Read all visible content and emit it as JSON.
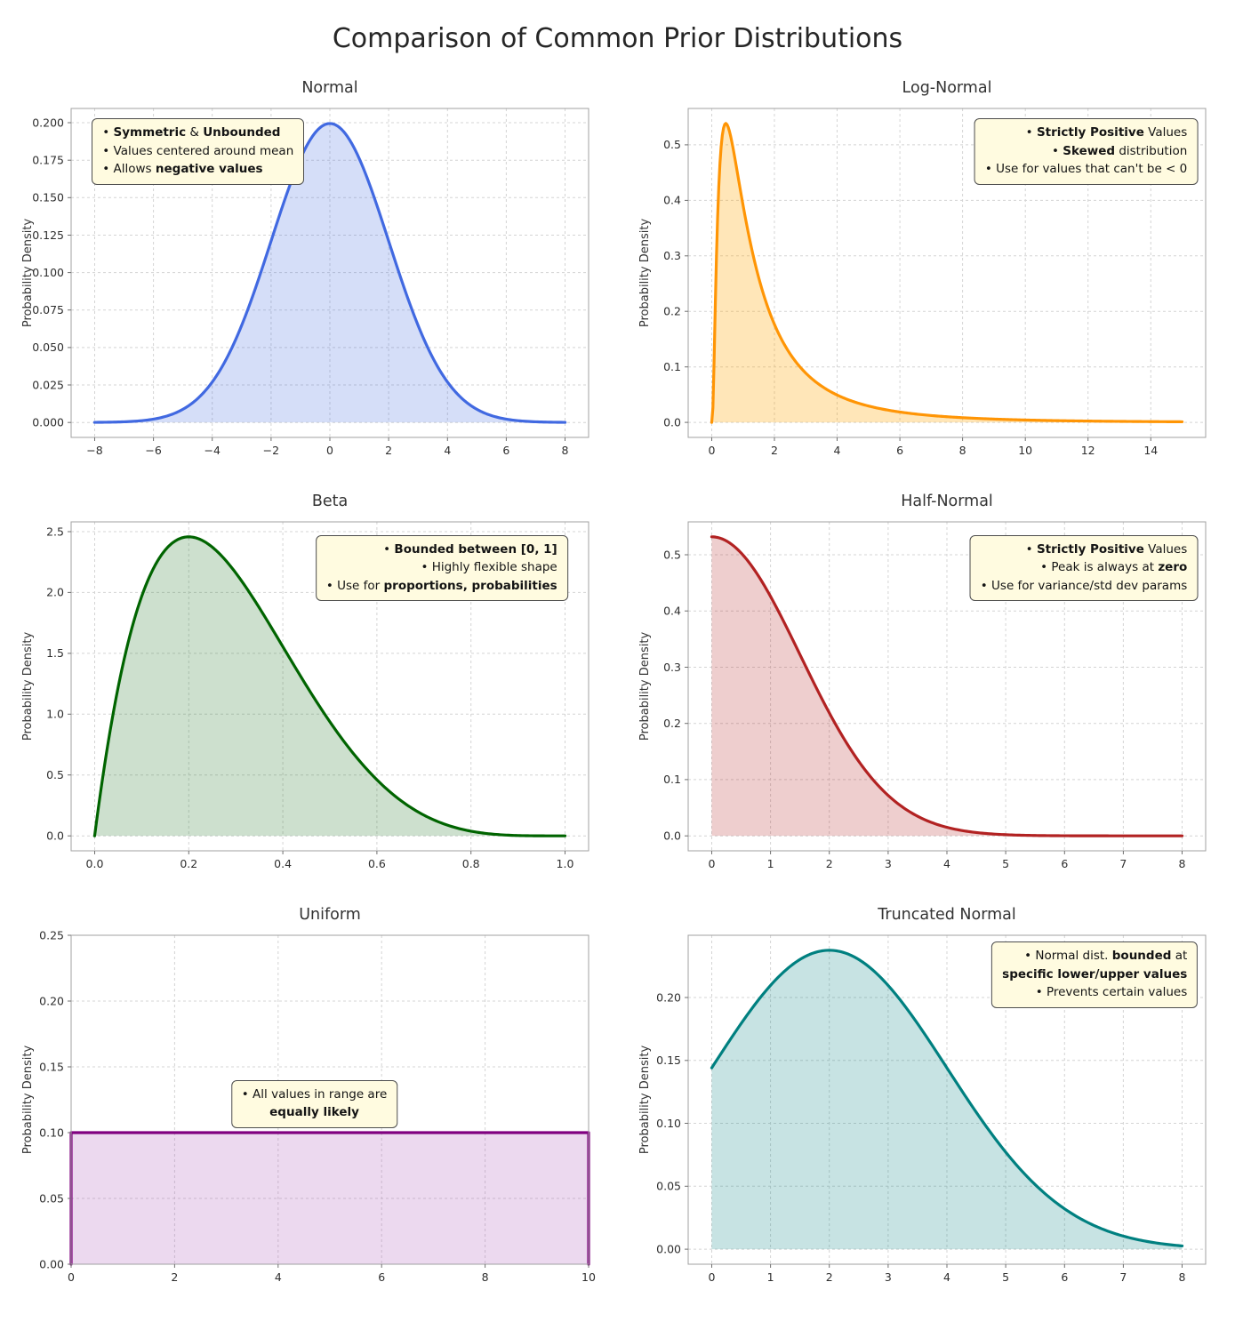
{
  "page": {
    "title": "Comparison of Common Prior Distributions"
  },
  "chart_data": [
    {
      "type": "area",
      "title": "Normal",
      "ylabel": "Probability Density",
      "line_color": "#4169e1",
      "fill_color": "rgba(65,105,225,0.22)",
      "dist": {
        "name": "normal",
        "mu": 0,
        "sigma": 2
      },
      "x_range": [
        -8,
        8
      ],
      "samples": 240,
      "xlim": [
        -8.8,
        8.8
      ],
      "ylim": [
        -0.00998,
        0.2095
      ],
      "x_ticks": [
        -8,
        -6,
        -4,
        -2,
        0,
        2,
        4,
        6,
        8
      ],
      "y_ticks": [
        0,
        0.025,
        0.05,
        0.075,
        0.1,
        0.125,
        0.15,
        0.175,
        0.2
      ],
      "x_fmt": 0,
      "y_fmt": 3,
      "grid": true,
      "key_points": {
        "peak_x": 0,
        "peak_y": 0.199
      },
      "annotation": {
        "align": "left",
        "anchor": "left",
        "fx": 0.04,
        "fy": 0.03,
        "lines": [
          [
            [
              "• ",
              0
            ],
            [
              "Symmetric",
              1
            ],
            [
              " & ",
              0
            ],
            [
              "Unbounded",
              1
            ]
          ],
          [
            [
              "• Values centered around mean",
              0
            ]
          ],
          [
            [
              "• Allows ",
              0
            ],
            [
              "negative values",
              1
            ]
          ]
        ]
      }
    },
    {
      "type": "area",
      "title": "Log-Normal",
      "ylabel": "Probability Density",
      "line_color": "#ff9505",
      "fill_color": "rgba(255,165,0,0.28)",
      "dist": {
        "name": "lognormal",
        "mu": 0.2,
        "sigma": 1.0
      },
      "x_range": [
        0.001,
        15
      ],
      "samples": 400,
      "xlim": [
        -0.75,
        15.75
      ],
      "ylim": [
        -0.027,
        0.5655
      ],
      "x_ticks": [
        0,
        2,
        4,
        6,
        8,
        10,
        12,
        14
      ],
      "y_ticks": [
        0,
        0.1,
        0.2,
        0.3,
        0.4,
        0.5
      ],
      "x_fmt": 0,
      "y_fmt": 1,
      "grid": true,
      "key_points": {
        "peak_x": 0.45,
        "peak_y": 0.539
      },
      "annotation": {
        "align": "right",
        "anchor": "right",
        "fx": 0.985,
        "fy": 0.03,
        "lines": [
          [
            [
              "• ",
              0
            ],
            [
              "Strictly Positive",
              1
            ],
            [
              " Values",
              0
            ]
          ],
          [
            [
              "• ",
              0
            ],
            [
              "Skewed",
              1
            ],
            [
              " distribution",
              0
            ]
          ],
          [
            [
              "• Use for values that can't be < 0",
              0
            ]
          ]
        ]
      }
    },
    {
      "type": "area",
      "title": "Beta",
      "ylabel": "Probability Density",
      "line_color": "#006400",
      "fill_color": "rgba(46,125,50,0.24)",
      "dist": {
        "name": "beta",
        "a": 2,
        "b": 5
      },
      "x_range": [
        0,
        1
      ],
      "samples": 240,
      "xlim": [
        -0.05,
        1.05
      ],
      "ylim": [
        -0.1229,
        2.5805
      ],
      "x_ticks": [
        0,
        0.2,
        0.4,
        0.6,
        0.8,
        1.0
      ],
      "y_ticks": [
        0,
        0.5,
        1.0,
        1.5,
        2.0,
        2.5
      ],
      "x_fmt": 1,
      "y_fmt": 1,
      "grid": true,
      "key_points": {
        "peak_x": 0.2,
        "peak_y": 2.458
      },
      "annotation": {
        "align": "right",
        "anchor": "right",
        "fx": 0.96,
        "fy": 0.04,
        "lines": [
          [
            [
              "• ",
              0
            ],
            [
              "Bounded between [0, 1]",
              1
            ]
          ],
          [
            [
              "• Highly flexible shape",
              0
            ]
          ],
          [
            [
              "• Use for ",
              0
            ],
            [
              "proportions, probabilities",
              1
            ]
          ]
        ]
      }
    },
    {
      "type": "area",
      "title": "Half-Normal",
      "ylabel": "Probability Density",
      "line_color": "#b22222",
      "fill_color": "rgba(178,34,34,0.22)",
      "dist": {
        "name": "halfnormal",
        "sigma": 1.5
      },
      "x_range": [
        0,
        8
      ],
      "samples": 240,
      "xlim": [
        -0.4,
        8.4
      ],
      "ylim": [
        -0.0266,
        0.5585
      ],
      "x_ticks": [
        0,
        1,
        2,
        3,
        4,
        5,
        6,
        7,
        8
      ],
      "y_ticks": [
        0,
        0.1,
        0.2,
        0.3,
        0.4,
        0.5
      ],
      "x_fmt": 0,
      "y_fmt": 1,
      "grid": true,
      "key_points": {
        "peak_x": 0,
        "peak_y": 0.532
      },
      "annotation": {
        "align": "right",
        "anchor": "right",
        "fx": 0.985,
        "fy": 0.04,
        "lines": [
          [
            [
              "• ",
              0
            ],
            [
              "Strictly Positive",
              1
            ],
            [
              " Values",
              0
            ]
          ],
          [
            [
              "• Peak is always at ",
              0
            ],
            [
              "zero",
              1
            ]
          ],
          [
            [
              "• Use for variance/std dev params",
              0
            ]
          ]
        ]
      }
    },
    {
      "type": "area",
      "title": "Uniform",
      "ylabel": "Probability Density",
      "line_color": "#800080",
      "fill_color": "rgba(170,80,180,0.22)",
      "dist": {
        "name": "uniform",
        "lo": 0,
        "hi": 10
      },
      "x_range": [
        0,
        10
      ],
      "samples": 2,
      "xlim": [
        0,
        10
      ],
      "ylim": [
        0,
        0.25
      ],
      "x_ticks": [
        0,
        2,
        4,
        6,
        8,
        10
      ],
      "y_ticks": [
        0,
        0.05,
        0.1,
        0.15,
        0.2,
        0.25
      ],
      "x_fmt": 0,
      "y_fmt": 2,
      "grid": true,
      "key_points": {
        "height": 0.1,
        "range_lo": 0,
        "range_hi": 10
      },
      "annotation": {
        "align": "center",
        "anchor": "center",
        "fx": 0.47,
        "fy": 0.44,
        "lines": [
          [
            [
              "• All values in range are",
              0
            ]
          ],
          [
            [
              "equally likely",
              1
            ]
          ]
        ]
      }
    },
    {
      "type": "area",
      "title": "Truncated Normal",
      "ylabel": "Probability Density",
      "line_color": "#008080",
      "fill_color": "rgba(0,128,128,0.22)",
      "dist": {
        "name": "truncnorm",
        "mu": 2,
        "sigma": 2,
        "lo": 0,
        "hi": 8
      },
      "x_range": [
        0,
        8
      ],
      "samples": 240,
      "xlim": [
        -0.4,
        8.4
      ],
      "ylim": [
        -0.0119,
        0.2494
      ],
      "x_ticks": [
        0,
        1,
        2,
        3,
        4,
        5,
        6,
        7,
        8
      ],
      "y_ticks": [
        0,
        0.05,
        0.1,
        0.15,
        0.2
      ],
      "x_fmt": 0,
      "y_fmt": 2,
      "grid": true,
      "key_points": {
        "peak_x": 2,
        "peak_y": 0.2375,
        "value_at_0": 0.144
      },
      "annotation": {
        "align": "right",
        "anchor": "right",
        "fx": 0.985,
        "fy": 0.02,
        "lines": [
          [
            [
              "• Normal dist. ",
              0
            ],
            [
              "bounded",
              1
            ],
            [
              " at",
              0
            ]
          ],
          [
            [
              "specific lower/upper values",
              1
            ]
          ],
          [
            [
              "• Prevents certain values",
              0
            ]
          ]
        ]
      }
    }
  ]
}
